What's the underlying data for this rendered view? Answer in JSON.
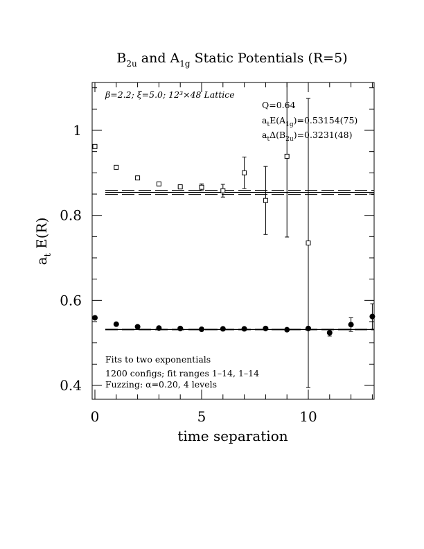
{
  "chart_data": {
    "type": "scatter",
    "title_main": "B",
    "title_sub1": "2u",
    "title_mid": " and A",
    "title_sub2": "1g",
    "title_end": " Static Potentials (R=5)",
    "xlabel": "time separation",
    "ylabel_main": "a",
    "ylabel_sub": "t",
    "ylabel_end": " E(R)",
    "xlim": [
      0,
      13
    ],
    "ylim": [
      0.365,
      1.11
    ],
    "x_tick_labels": [
      "0",
      "5",
      "10"
    ],
    "y_tick_labels": [
      "0.4",
      "0.6",
      "0.8",
      "1"
    ],
    "x_ticks": [
      0,
      5,
      10
    ],
    "y_ticks": [
      0.4,
      0.6,
      0.8,
      1.0
    ],
    "series": [
      {
        "marker": "open-square",
        "points": [
          {
            "x": 0,
            "y": 0.962,
            "err": 0.003
          },
          {
            "x": 1,
            "y": 0.913,
            "err": 0.003
          },
          {
            "x": 2,
            "y": 0.888,
            "err": 0.003
          },
          {
            "x": 3,
            "y": 0.874,
            "err": 0.004
          },
          {
            "x": 4,
            "y": 0.867,
            "err": 0.005
          },
          {
            "x": 5,
            "y": 0.866,
            "err": 0.008
          },
          {
            "x": 6,
            "y": 0.858,
            "err": 0.015
          },
          {
            "x": 7,
            "y": 0.9,
            "err": 0.037
          },
          {
            "x": 8,
            "y": 0.835,
            "err": 0.08
          },
          {
            "x": 9,
            "y": 0.939,
            "err": 0.19
          },
          {
            "x": 10,
            "y": 0.735,
            "err": 0.34
          }
        ],
        "fit": {
          "value": 0.854,
          "band": [
            0.849,
            0.859
          ]
        }
      },
      {
        "marker": "filled-circle",
        "points": [
          {
            "x": 0,
            "y": 0.559,
            "err": 0.004
          },
          {
            "x": 1,
            "y": 0.544,
            "err": 0.003
          },
          {
            "x": 2,
            "y": 0.538,
            "err": 0.002
          },
          {
            "x": 3,
            "y": 0.535,
            "err": 0.002
          },
          {
            "x": 4,
            "y": 0.534,
            "err": 0.002
          },
          {
            "x": 5,
            "y": 0.532,
            "err": 0.002
          },
          {
            "x": 6,
            "y": 0.533,
            "err": 0.002
          },
          {
            "x": 7,
            "y": 0.533,
            "err": 0.002
          },
          {
            "x": 8,
            "y": 0.534,
            "err": 0.003
          },
          {
            "x": 9,
            "y": 0.531,
            "err": 0.003
          },
          {
            "x": 10,
            "y": 0.534,
            "err": 0.004
          },
          {
            "x": 11,
            "y": 0.524,
            "err": 0.008
          },
          {
            "x": 12,
            "y": 0.543,
            "err": 0.016
          },
          {
            "x": 13,
            "y": 0.562,
            "err": 0.03
          }
        ],
        "fit": {
          "value": 0.5315,
          "band": [
            0.5307,
            0.5323
          ]
        }
      }
    ],
    "annotations": {
      "params": "β=2.2; ξ=5.0; 12³×48 Lattice",
      "q": "Q=0.64",
      "energy_a": "a",
      "energy_t": "t",
      "energy_b": "E(A",
      "energy_sub": "1g",
      "energy_c": ")=0.53154(75)",
      "delta_a": "a",
      "delta_t": "t",
      "delta_b": "Δ(B",
      "delta_sub": "2u",
      "delta_c": ")=0.3231(48)",
      "fits_line": "Fits to two exponentials",
      "configs_line": "1200 configs; fit ranges 1–14, 1–14",
      "fuzz_line": "Fuzzing: α=0.20, 4 levels"
    }
  }
}
